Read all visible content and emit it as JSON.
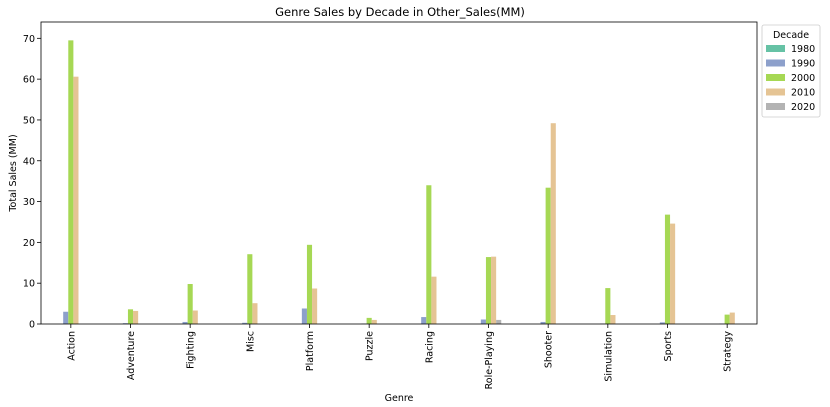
{
  "chart_data": {
    "type": "bar",
    "title": "Genre Sales by Decade in Other_Sales(MM)",
    "xlabel": "Genre",
    "ylabel": "Total Sales (MM)",
    "ylim": [
      0,
      74
    ],
    "yticks": [
      0,
      10,
      20,
      30,
      40,
      50,
      60,
      70
    ],
    "grid": false,
    "legend": {
      "title": "Decade",
      "position": "outside-top-right"
    },
    "categories": [
      "Action",
      "Adventure",
      "Fighting",
      "Misc",
      "Platform",
      "Puzzle",
      "Racing",
      "Role-Playing",
      "Shooter",
      "Simulation",
      "Sports",
      "Strategy"
    ],
    "series": [
      {
        "name": "1980",
        "color": "#66c2a5",
        "values": [
          0,
          0,
          0,
          0,
          0,
          0,
          0,
          0,
          0,
          0,
          0,
          0
        ]
      },
      {
        "name": "1990",
        "color": "#8da0cb",
        "values": [
          3.0,
          0.2,
          0.5,
          0.3,
          3.8,
          0.1,
          1.7,
          1.1,
          0.5,
          0.1,
          0.4,
          0.1
        ]
      },
      {
        "name": "2000",
        "color": "#a6d854",
        "values": [
          69.5,
          3.6,
          9.8,
          17.1,
          19.4,
          1.5,
          34.0,
          16.4,
          33.4,
          8.8,
          26.8,
          2.3
        ]
      },
      {
        "name": "2010",
        "color": "#e5c494",
        "values": [
          60.6,
          3.2,
          3.3,
          5.1,
          8.7,
          1.0,
          11.6,
          16.5,
          49.2,
          2.2,
          24.6,
          2.8
        ]
      },
      {
        "name": "2020",
        "color": "#b3b3b3",
        "values": [
          0,
          0,
          0,
          0,
          0,
          0,
          0,
          1.0,
          0,
          0,
          0,
          0
        ]
      }
    ]
  }
}
